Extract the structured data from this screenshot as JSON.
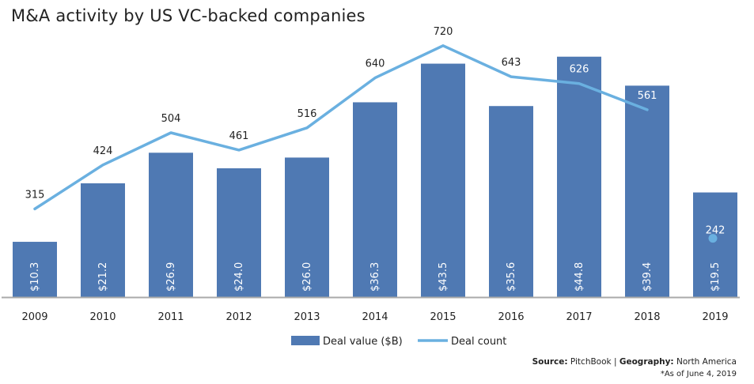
{
  "title": "M&A activity by US VC-backed companies",
  "source": {
    "label": "Source:",
    "source_name": "PitchBook",
    "separator": "|",
    "geo_label": "Geography:",
    "geo_value": "North America"
  },
  "note": "*As of June 4, 2019",
  "colors": {
    "bar": "#4f79b3",
    "line": "#6ab0e0",
    "axis": "#aaaaaa"
  },
  "chart_data": {
    "type": "bar",
    "title": "M&A activity by US VC-backed companies",
    "categories": [
      "2009",
      "2010",
      "2011",
      "2012",
      "2013",
      "2014",
      "2015",
      "2016",
      "2017",
      "2018",
      "2019"
    ],
    "series": [
      {
        "name": "Deal value ($B)",
        "type": "bar",
        "axis": "left",
        "values": [
          10.3,
          21.2,
          26.9,
          24.0,
          26.0,
          36.3,
          43.5,
          35.6,
          44.8,
          39.4,
          19.5
        ],
        "labels": [
          "$10.3",
          "$21.2",
          "$26.9",
          "$24.0",
          "$26.0",
          "$36.3",
          "$43.5",
          "$35.6",
          "$44.8",
          "$39.4",
          "$19.5"
        ]
      },
      {
        "name": "Deal count",
        "type": "line",
        "axis": "right",
        "values": [
          315,
          424,
          504,
          461,
          516,
          640,
          720,
          643,
          626,
          561,
          242
        ],
        "labels": [
          "315",
          "424",
          "504",
          "461",
          "516",
          "640",
          "720",
          "643",
          "626",
          "561",
          "242"
        ],
        "connected_through": "2018",
        "marker_only": [
          "2019"
        ]
      }
    ],
    "ylim_left": [
      0,
      48
    ],
    "ylim_right": [
      0,
      800
    ],
    "legend": {
      "position": "bottom-center",
      "items": [
        "Deal value ($B)",
        "Deal count"
      ]
    },
    "grid": false
  }
}
